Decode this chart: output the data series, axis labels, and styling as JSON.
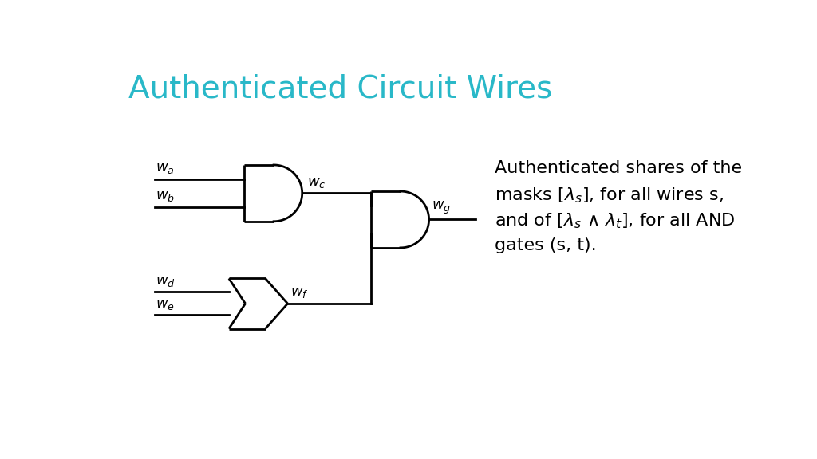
{
  "title": "Authenticated Circuit Wires",
  "title_color": "#29b8c8",
  "title_fontsize": 28,
  "bg_color": "#ffffff",
  "line_color": "#000000",
  "line_width": 2.0,
  "annotation_fontsize": 16
}
